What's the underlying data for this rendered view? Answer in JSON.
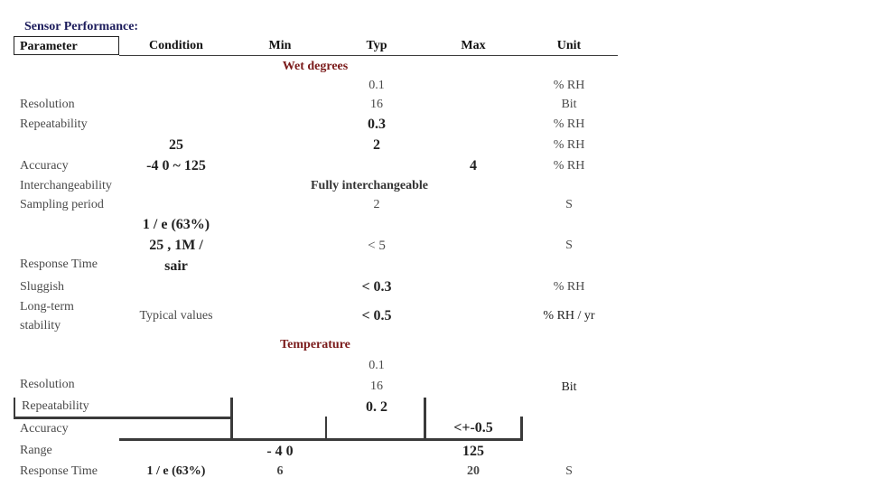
{
  "title": "Sensor Performance:",
  "headers": {
    "parameter": "Parameter",
    "condition": "Condition",
    "min": "Min",
    "typ": "Typ",
    "max": "Max",
    "unit": "Unit"
  },
  "wet": {
    "section": "Wet degrees",
    "resolution": {
      "name": "Resolution",
      "typ_top": "0.1",
      "unit_top": "% RH",
      "typ": "16",
      "unit": "Bit"
    },
    "repeatability": {
      "name": "Repeatability",
      "typ": "0.3",
      "unit": "% RH"
    },
    "accuracy": {
      "cond_top": "25",
      "typ_top": "2",
      "unit_top": "% RH",
      "name": "Accuracy",
      "cond": "-4 0 ~ 125",
      "max": "4",
      "unit": "% RH"
    },
    "interchangeability": {
      "name": "Interchangeability",
      "typ": "Fully interchangeable"
    },
    "sampling": {
      "name": "Sampling period",
      "typ": "2",
      "unit": "S"
    },
    "response": {
      "cond_1": "1 / e (63%)",
      "cond_2": "25 , 1M /",
      "name": "Response Time",
      "cond_3": "sair",
      "typ": "< 5",
      "unit": "S"
    },
    "sluggish": {
      "name": "Sluggish",
      "typ": "< 0.3",
      "unit": "% RH"
    },
    "stability": {
      "name_1": "Long-term",
      "name_2": "stability",
      "cond": "Typical values",
      "typ": "< 0.5",
      "unit": "% RH / yr"
    }
  },
  "temp": {
    "section": "Temperature",
    "resolution": {
      "name": "Resolution",
      "typ_top": "0.1",
      "typ": "16",
      "unit": "Bit"
    },
    "repeatability": {
      "name": "Repeatability",
      "typ": "0. 2"
    },
    "accuracy": {
      "name": "Accuracy",
      "max": "<+-0.5"
    },
    "range": {
      "name": "Range",
      "min": "- 4 0",
      "max": "125"
    },
    "response": {
      "name": "Response Time",
      "cond": "1 / e (63%)",
      "min": "6",
      "max": "20",
      "unit": "S"
    }
  }
}
